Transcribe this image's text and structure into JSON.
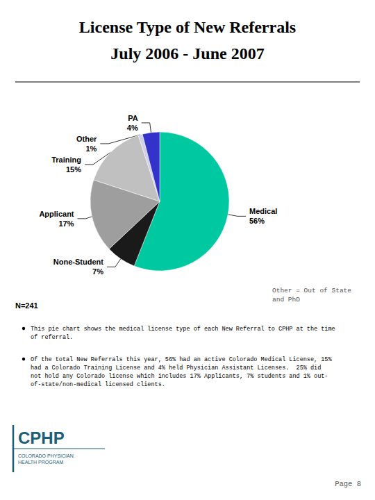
{
  "chart_data": {
    "type": "pie",
    "title": "License Type of New Referrals",
    "subtitle": "July 2006 - June 2007",
    "categories": [
      "Medical",
      "None-Student",
      "Applicant",
      "Training",
      "Other",
      "PA"
    ],
    "values": [
      56,
      7,
      17,
      15,
      1,
      4
    ],
    "value_labels": [
      "56%",
      "7%",
      "17%",
      "15%",
      "1%",
      "4%"
    ],
    "colors": [
      "#00C8A0",
      "#1A1A1A",
      "#9E9E9E",
      "#C0C0C0",
      "#D0D0E8",
      "#3333CC"
    ],
    "data_labels": true,
    "annotations": [
      "Other = Out of State\nand PhD",
      "N=241",
      "This pie chart shows the medical license type of each New Referral to CPHP at the time\nof referral.",
      "Of the total New Referrals this year, 56% had an active Colorado Medical License, 15%\nhad a Colorado Training License and 4% held Physician Assistant Licenses.  25% did\nnot hold any Colorado license which includes 17% Applicants, 7% students and 1% out-\nof-state/non-medical licensed clients.",
      "CPHP",
      "COLORADO PHYSICIAN\nHEALTH PROGRAM",
      "Page 8"
    ]
  }
}
